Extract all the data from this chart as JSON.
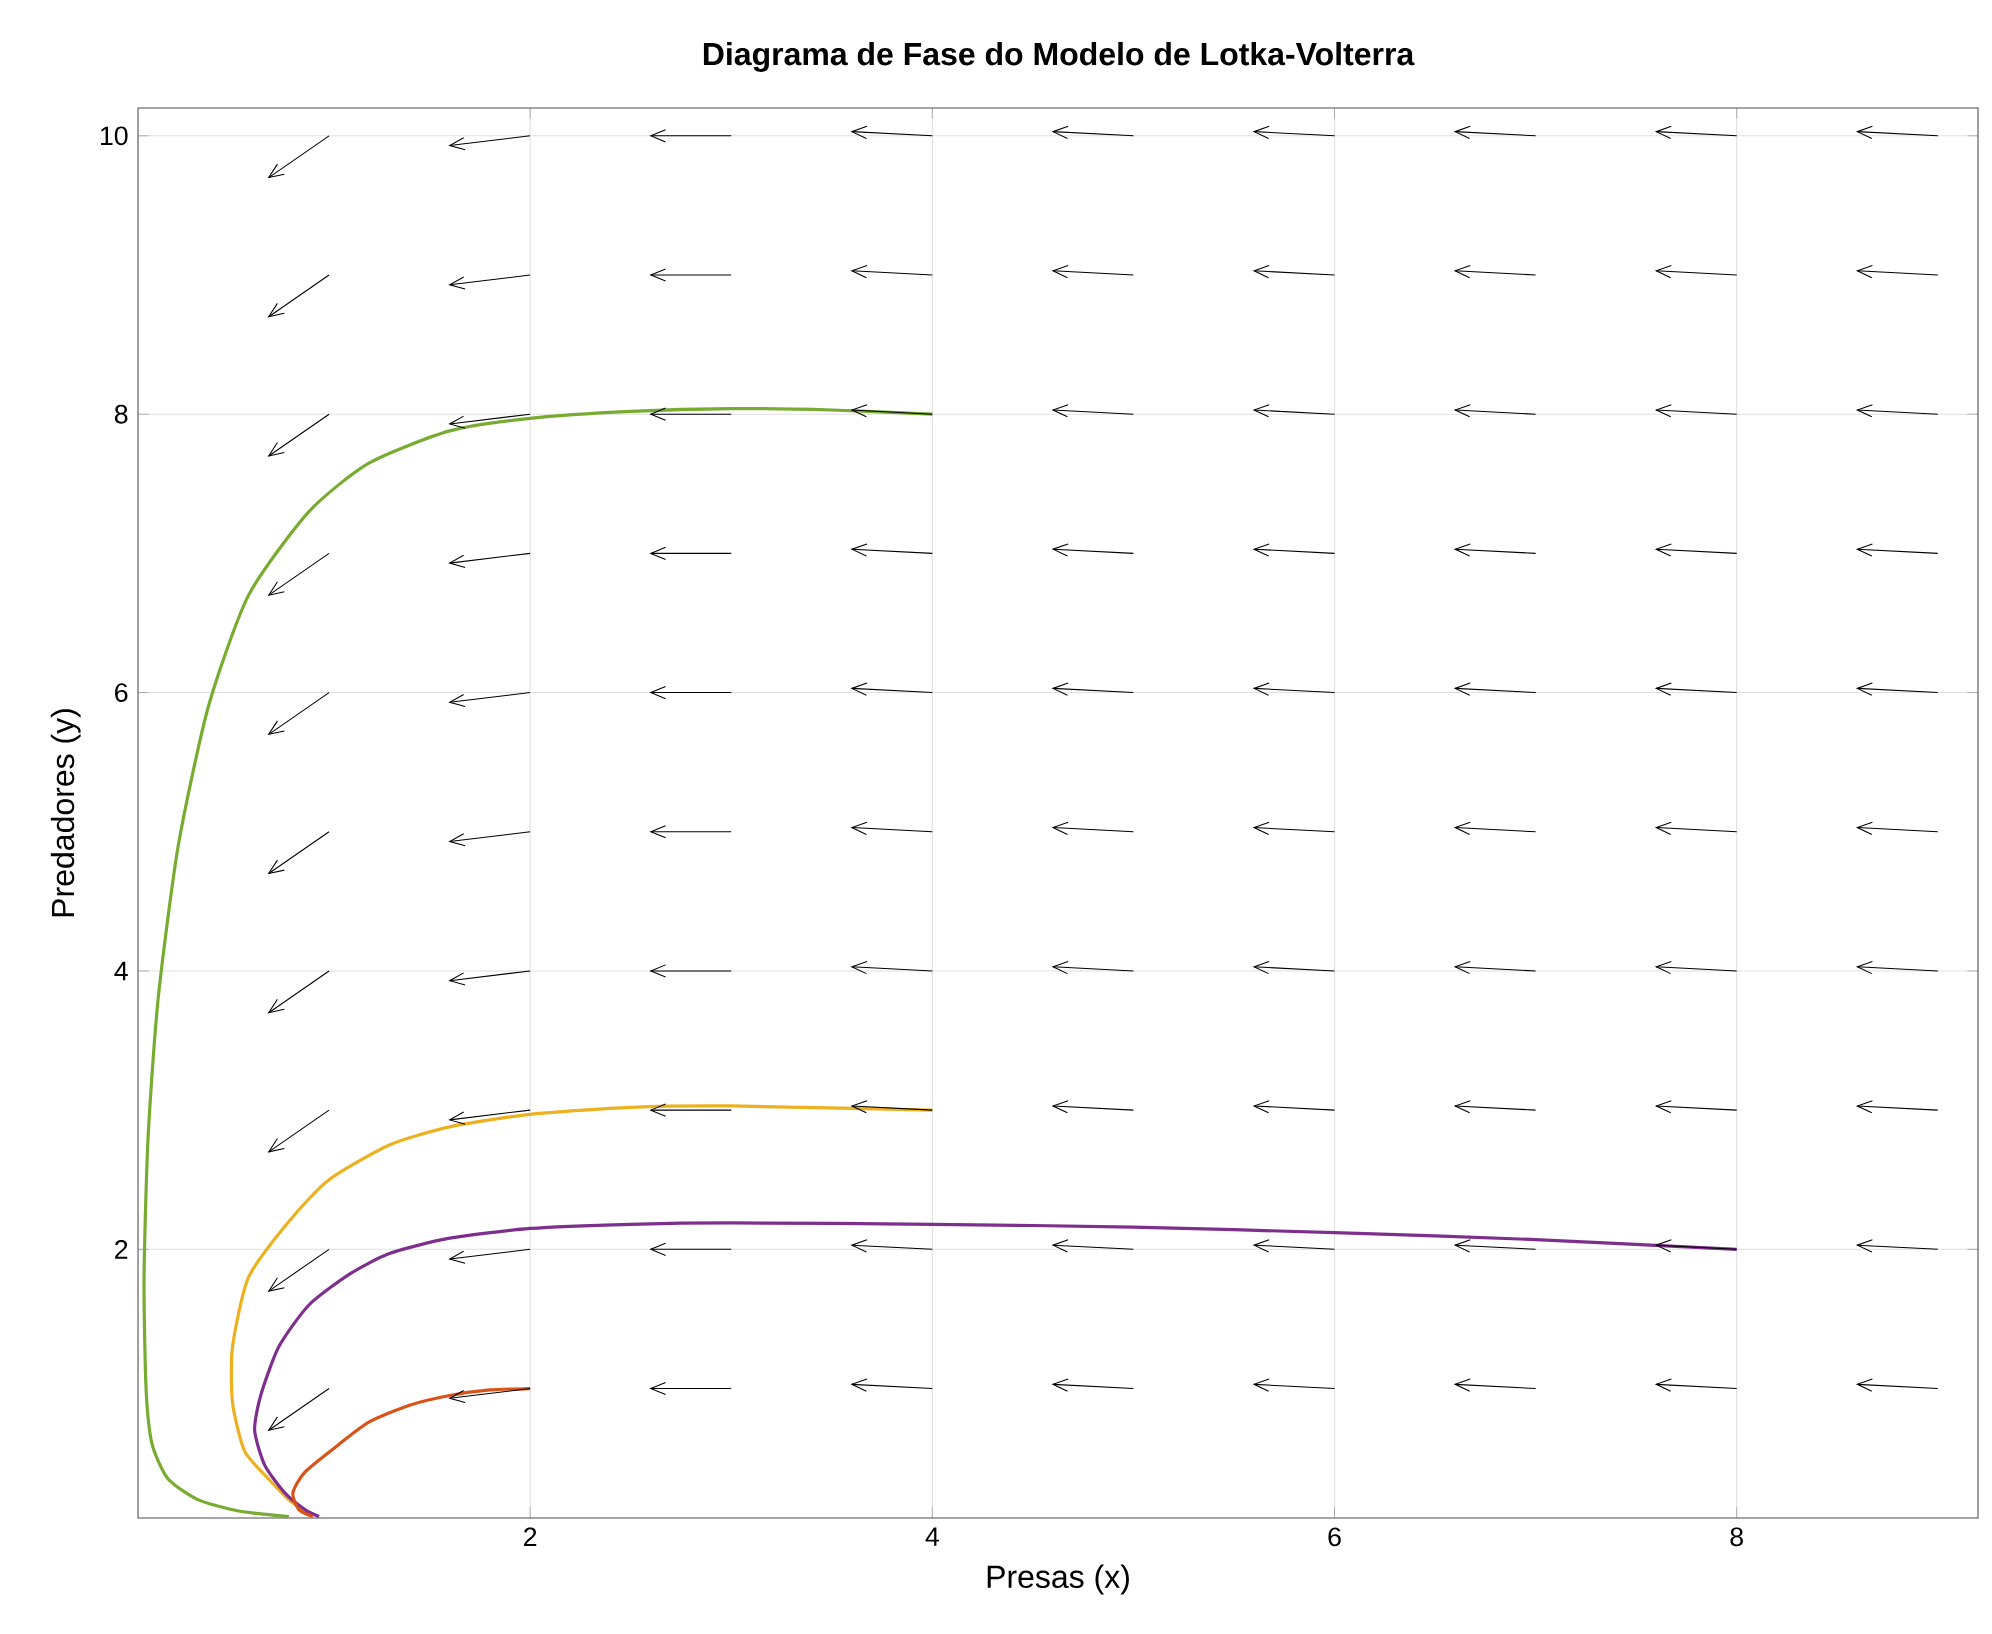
{
  "chart_data": {
    "type": "line",
    "title": "Diagrama de Fase do Modelo de Lotka-Volterra",
    "xlabel": "Presas (x)",
    "ylabel": "Predadores (y)",
    "xlim": [
      0.05,
      9.2
    ],
    "ylim": [
      0.07,
      10.2
    ],
    "xticks": [
      2,
      4,
      6,
      8
    ],
    "yticks": [
      2,
      4,
      6,
      8,
      10
    ],
    "grid": true,
    "marker": "none",
    "line_style": "solid",
    "series": [
      {
        "color": "#000000",
        "x": [
          1,
          0.7
        ],
        "values": [
          1,
          0.7
        ]
      },
      {
        "color": "#000000",
        "x": [
          1,
          0.7
        ],
        "values": [
          2,
          1.7
        ]
      },
      {
        "color": "#000000",
        "x": [
          1,
          0.7
        ],
        "values": [
          3,
          2.7
        ]
      },
      {
        "color": "#000000",
        "x": [
          1,
          0.7
        ],
        "values": [
          4,
          3.7
        ]
      },
      {
        "color": "#000000",
        "x": [
          1,
          0.7
        ],
        "values": [
          5,
          4.7
        ]
      },
      {
        "color": "#000000",
        "x": [
          1,
          0.7
        ],
        "values": [
          6,
          5.7
        ]
      },
      {
        "color": "#000000",
        "x": [
          1,
          0.7
        ],
        "values": [
          7,
          6.7
        ]
      },
      {
        "color": "#000000",
        "x": [
          1,
          0.7
        ],
        "values": [
          8,
          7.7
        ]
      },
      {
        "color": "#000000",
        "x": [
          1,
          0.7
        ],
        "values": [
          9,
          8.7
        ]
      },
      {
        "color": "#000000",
        "x": [
          1,
          0.7
        ],
        "values": [
          10,
          9.7
        ]
      },
      {
        "color": "#000000",
        "x": [
          2,
          1.6
        ],
        "values": [
          1,
          0.93
        ]
      },
      {
        "color": "#000000",
        "x": [
          2,
          1.6
        ],
        "values": [
          2,
          1.93
        ]
      },
      {
        "color": "#000000",
        "x": [
          2,
          1.6
        ],
        "values": [
          3,
          2.93
        ]
      },
      {
        "color": "#000000",
        "x": [
          2,
          1.6
        ],
        "values": [
          4,
          3.93
        ]
      },
      {
        "color": "#000000",
        "x": [
          2,
          1.6
        ],
        "values": [
          5,
          4.93
        ]
      },
      {
        "color": "#000000",
        "x": [
          2,
          1.6
        ],
        "values": [
          6,
          5.93
        ]
      },
      {
        "color": "#000000",
        "x": [
          2,
          1.6
        ],
        "values": [
          7,
          6.93
        ]
      },
      {
        "color": "#000000",
        "x": [
          2,
          1.6
        ],
        "values": [
          8,
          7.93
        ]
      },
      {
        "color": "#000000",
        "x": [
          2,
          1.6
        ],
        "values": [
          9,
          8.93
        ]
      },
      {
        "color": "#000000",
        "x": [
          2,
          1.6
        ],
        "values": [
          10,
          9.93
        ]
      },
      {
        "color": "#000000",
        "x": [
          3,
          2.6
        ],
        "values": [
          1,
          1
        ]
      },
      {
        "color": "#000000",
        "x": [
          3,
          2.6
        ],
        "values": [
          2,
          2
        ]
      },
      {
        "color": "#000000",
        "x": [
          3,
          2.6
        ],
        "values": [
          3,
          3
        ]
      },
      {
        "color": "#000000",
        "x": [
          3,
          2.6
        ],
        "values": [
          4,
          4
        ]
      },
      {
        "color": "#000000",
        "x": [
          3,
          2.6
        ],
        "values": [
          5,
          5
        ]
      },
      {
        "color": "#000000",
        "x": [
          3,
          2.6
        ],
        "values": [
          6,
          6
        ]
      },
      {
        "color": "#000000",
        "x": [
          3,
          2.6
        ],
        "values": [
          7,
          7
        ]
      },
      {
        "color": "#000000",
        "x": [
          3,
          2.6
        ],
        "values": [
          8,
          8
        ]
      },
      {
        "color": "#000000",
        "x": [
          3,
          2.6
        ],
        "values": [
          9,
          9
        ]
      },
      {
        "color": "#000000",
        "x": [
          3,
          2.6
        ],
        "values": [
          10,
          10
        ]
      },
      {
        "color": "#000000",
        "x": [
          4,
          3.6
        ],
        "values": [
          1,
          1.03
        ]
      },
      {
        "color": "#000000",
        "x": [
          4,
          3.6
        ],
        "values": [
          2,
          2.03
        ]
      },
      {
        "color": "#000000",
        "x": [
          4,
          3.6
        ],
        "values": [
          3,
          3.03
        ]
      },
      {
        "color": "#000000",
        "x": [
          4,
          3.6
        ],
        "values": [
          4,
          4.03
        ]
      },
      {
        "color": "#000000",
        "x": [
          4,
          3.6
        ],
        "values": [
          5,
          5.03
        ]
      },
      {
        "color": "#000000",
        "x": [
          4,
          3.6
        ],
        "values": [
          6,
          6.03
        ]
      },
      {
        "color": "#000000",
        "x": [
          4,
          3.6
        ],
        "values": [
          7,
          7.03
        ]
      },
      {
        "color": "#000000",
        "x": [
          4,
          3.6
        ],
        "values": [
          8,
          8.03
        ]
      },
      {
        "color": "#000000",
        "x": [
          4,
          3.6
        ],
        "values": [
          9,
          9.03
        ]
      },
      {
        "color": "#000000",
        "x": [
          4,
          3.6
        ],
        "values": [
          10,
          10.03
        ]
      },
      {
        "color": "#000000",
        "x": [
          5,
          4.6
        ],
        "values": [
          1,
          1.03
        ]
      },
      {
        "color": "#000000",
        "x": [
          5,
          4.6
        ],
        "values": [
          2,
          2.03
        ]
      },
      {
        "color": "#000000",
        "x": [
          5,
          4.6
        ],
        "values": [
          3,
          3.03
        ]
      },
      {
        "color": "#000000",
        "x": [
          5,
          4.6
        ],
        "values": [
          4,
          4.03
        ]
      },
      {
        "color": "#000000",
        "x": [
          5,
          4.6
        ],
        "values": [
          5,
          5.03
        ]
      },
      {
        "color": "#000000",
        "x": [
          5,
          4.6
        ],
        "values": [
          6,
          6.03
        ]
      },
      {
        "color": "#000000",
        "x": [
          5,
          4.6
        ],
        "values": [
          7,
          7.03
        ]
      },
      {
        "color": "#000000",
        "x": [
          5,
          4.6
        ],
        "values": [
          8,
          8.03
        ]
      },
      {
        "color": "#000000",
        "x": [
          5,
          4.6
        ],
        "values": [
          9,
          9.03
        ]
      },
      {
        "color": "#000000",
        "x": [
          5,
          4.6
        ],
        "values": [
          10,
          10.03
        ]
      },
      {
        "color": "#000000",
        "x": [
          6,
          5.6
        ],
        "values": [
          1,
          1.03
        ]
      },
      {
        "color": "#000000",
        "x": [
          6,
          5.6
        ],
        "values": [
          2,
          2.03
        ]
      },
      {
        "color": "#000000",
        "x": [
          6,
          5.6
        ],
        "values": [
          3,
          3.03
        ]
      },
      {
        "color": "#000000",
        "x": [
          6,
          5.6
        ],
        "values": [
          4,
          4.03
        ]
      },
      {
        "color": "#000000",
        "x": [
          6,
          5.6
        ],
        "values": [
          5,
          5.03
        ]
      },
      {
        "color": "#000000",
        "x": [
          6,
          5.6
        ],
        "values": [
          6,
          6.03
        ]
      },
      {
        "color": "#000000",
        "x": [
          6,
          5.6
        ],
        "values": [
          7,
          7.03
        ]
      },
      {
        "color": "#000000",
        "x": [
          6,
          5.6
        ],
        "values": [
          8,
          8.03
        ]
      },
      {
        "color": "#000000",
        "x": [
          6,
          5.6
        ],
        "values": [
          9,
          9.03
        ]
      },
      {
        "color": "#000000",
        "x": [
          6,
          5.6
        ],
        "values": [
          10,
          10.03
        ]
      },
      {
        "color": "#000000",
        "x": [
          7,
          6.6
        ],
        "values": [
          1,
          1.03
        ]
      },
      {
        "color": "#000000",
        "x": [
          7,
          6.6
        ],
        "values": [
          2,
          2.03
        ]
      },
      {
        "color": "#000000",
        "x": [
          7,
          6.6
        ],
        "values": [
          3,
          3.03
        ]
      },
      {
        "color": "#000000",
        "x": [
          7,
          6.6
        ],
        "values": [
          4,
          4.03
        ]
      },
      {
        "color": "#000000",
        "x": [
          7,
          6.6
        ],
        "values": [
          5,
          5.03
        ]
      },
      {
        "color": "#000000",
        "x": [
          7,
          6.6
        ],
        "values": [
          6,
          6.03
        ]
      },
      {
        "color": "#000000",
        "x": [
          7,
          6.6
        ],
        "values": [
          7,
          7.03
        ]
      },
      {
        "color": "#000000",
        "x": [
          7,
          6.6
        ],
        "values": [
          8,
          8.03
        ]
      },
      {
        "color": "#000000",
        "x": [
          7,
          6.6
        ],
        "values": [
          9,
          9.03
        ]
      },
      {
        "color": "#000000",
        "x": [
          7,
          6.6
        ],
        "values": [
          10,
          10.03
        ]
      },
      {
        "color": "#000000",
        "x": [
          8,
          7.6
        ],
        "values": [
          1,
          1.03
        ]
      },
      {
        "color": "#000000",
        "x": [
          8,
          7.6
        ],
        "values": [
          2,
          2.03
        ]
      },
      {
        "color": "#000000",
        "x": [
          8,
          7.6
        ],
        "values": [
          3,
          3.03
        ]
      },
      {
        "color": "#000000",
        "x": [
          8,
          7.6
        ],
        "values": [
          4,
          4.03
        ]
      },
      {
        "color": "#000000",
        "x": [
          8,
          7.6
        ],
        "values": [
          5,
          5.03
        ]
      },
      {
        "color": "#000000",
        "x": [
          8,
          7.6
        ],
        "values": [
          6,
          6.03
        ]
      },
      {
        "color": "#000000",
        "x": [
          8,
          7.6
        ],
        "values": [
          7,
          7.03
        ]
      },
      {
        "color": "#000000",
        "x": [
          8,
          7.6
        ],
        "values": [
          8,
          8.03
        ]
      },
      {
        "color": "#000000",
        "x": [
          8,
          7.6
        ],
        "values": [
          9,
          9.03
        ]
      },
      {
        "color": "#000000",
        "x": [
          8,
          7.6
        ],
        "values": [
          10,
          10.03
        ]
      },
      {
        "color": "#000000",
        "x": [
          9,
          8.6
        ],
        "values": [
          1,
          1.03
        ]
      },
      {
        "color": "#000000",
        "x": [
          9,
          8.6
        ],
        "values": [
          2,
          2.03
        ]
      },
      {
        "color": "#000000",
        "x": [
          9,
          8.6
        ],
        "values": [
          3,
          3.03
        ]
      },
      {
        "color": "#000000",
        "x": [
          9,
          8.6
        ],
        "values": [
          4,
          4.03
        ]
      },
      {
        "color": "#000000",
        "x": [
          9,
          8.6
        ],
        "values": [
          5,
          5.03
        ]
      },
      {
        "color": "#000000",
        "x": [
          9,
          8.6
        ],
        "values": [
          6,
          6.03
        ]
      },
      {
        "color": "#000000",
        "x": [
          9,
          8.6
        ],
        "values": [
          7,
          7.03
        ]
      },
      {
        "color": "#000000",
        "x": [
          9,
          8.6
        ],
        "values": [
          8,
          8.03
        ]
      },
      {
        "color": "#000000",
        "x": [
          9,
          8.6
        ],
        "values": [
          9,
          9.03
        ]
      },
      {
        "color": "#000000",
        "x": [
          9,
          8.6
        ],
        "values": [
          10,
          10.03
        ]
      },
      {
        "color": "#77ac30",
        "x": [
          4,
          3.5,
          3,
          2.5,
          2,
          1.6,
          1.2,
          0.9,
          0.6,
          0.4,
          0.25,
          0.15,
          0.1,
          0.08,
          0.09,
          0.12,
          0.2,
          0.35,
          0.55,
          0.8
        ],
        "values": [
          8,
          8.03,
          8.04,
          8.02,
          7.97,
          7.88,
          7.65,
          7.3,
          6.7,
          5.9,
          4.9,
          3.8,
          2.8,
          1.8,
          1.0,
          0.6,
          0.35,
          0.2,
          0.12,
          0.08
        ]
      },
      {
        "color": "#edb120",
        "x": [
          4,
          3,
          2.5,
          2,
          1.6,
          1.3,
          1,
          0.8,
          0.6,
          0.52,
          0.52,
          0.58,
          0.7,
          0.8,
          0.9
        ],
        "values": [
          3,
          3.03,
          3.02,
          2.97,
          2.88,
          2.75,
          2.5,
          2.2,
          1.8,
          1.3,
          0.9,
          0.55,
          0.35,
          0.2,
          0.1
        ]
      },
      {
        "color": "#7e2f8e",
        "x": [
          8,
          7,
          6,
          5,
          4,
          3,
          2.5,
          2,
          1.6,
          1.3,
          1.1,
          0.9,
          0.75,
          0.66,
          0.63,
          0.68,
          0.78,
          0.88,
          0.95
        ],
        "values": [
          2,
          2.07,
          2.12,
          2.16,
          2.18,
          2.19,
          2.18,
          2.15,
          2.08,
          1.97,
          1.82,
          1.6,
          1.3,
          0.95,
          0.7,
          0.45,
          0.25,
          0.13,
          0.08
        ]
      },
      {
        "color": "#d95319",
        "x": [
          2,
          1.8,
          1.6,
          1.4,
          1.2,
          1.05,
          0.88,
          0.82,
          0.85,
          0.92
        ],
        "values": [
          1,
          0.99,
          0.95,
          0.88,
          0.76,
          0.6,
          0.4,
          0.25,
          0.13,
          0.08
        ]
      }
    ]
  }
}
